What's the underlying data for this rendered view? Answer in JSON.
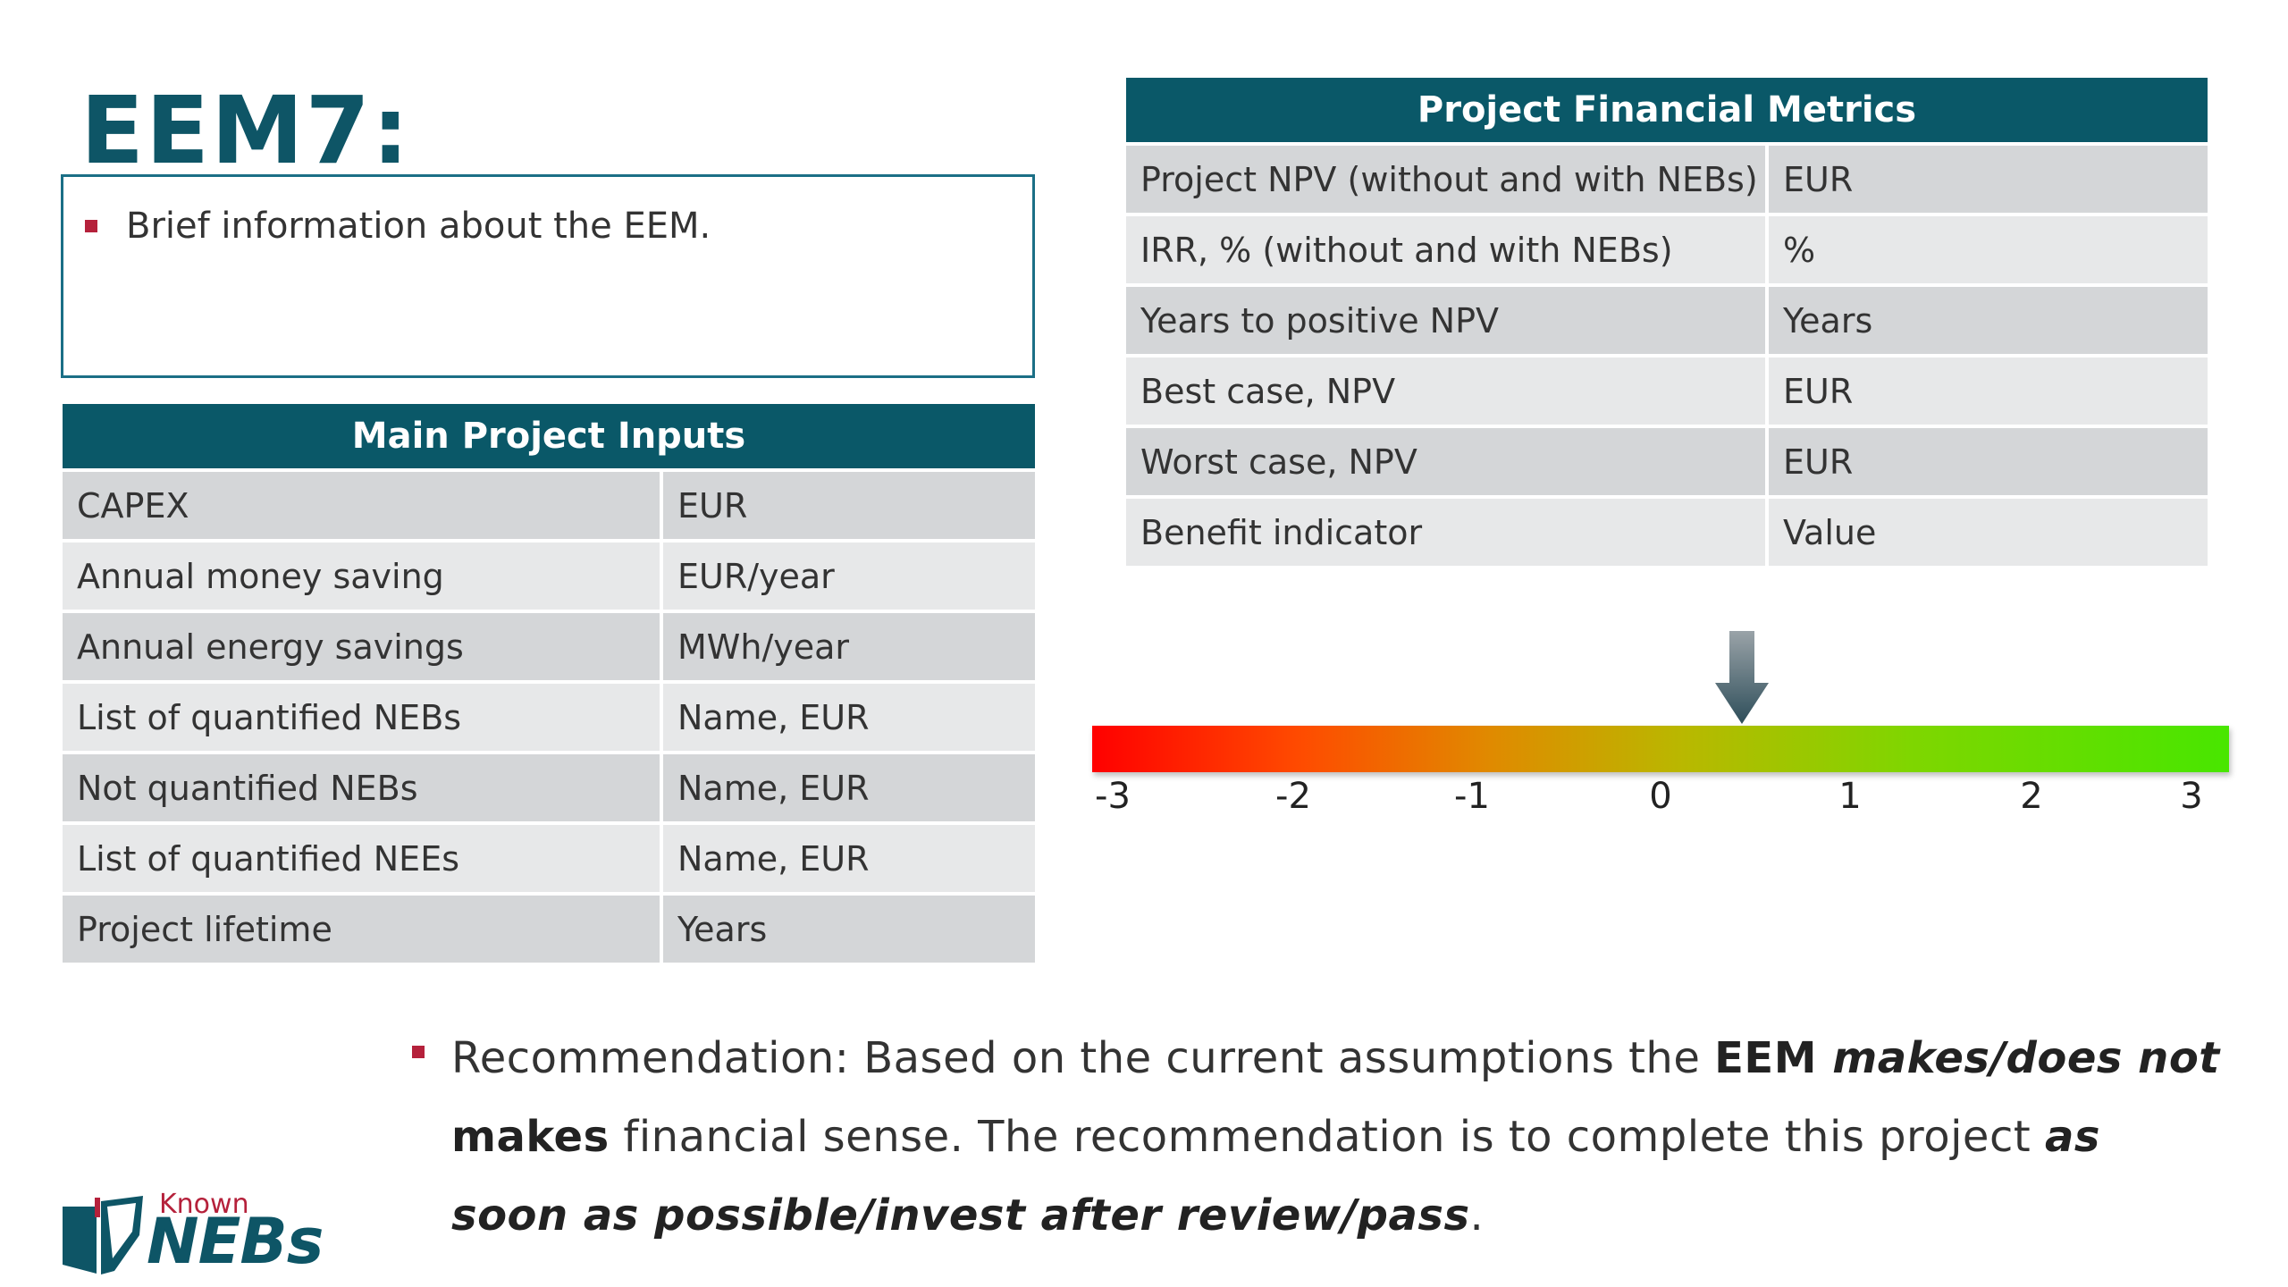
{
  "slide": {
    "title": "EEM7:",
    "info_bullet": "Brief information about the EEM."
  },
  "inputs_table": {
    "header": "Main Project Inputs",
    "rows": [
      {
        "label": "CAPEX",
        "unit": "EUR"
      },
      {
        "label": "Annual money saving",
        "unit": "EUR/year"
      },
      {
        "label": "Annual energy savings",
        "unit": "MWh/year"
      },
      {
        "label": "List of quantified NEBs",
        "unit": "Name, EUR"
      },
      {
        "label": "Not quantified NEBs",
        "unit": "Name, EUR"
      },
      {
        "label": "List of quantified NEEs",
        "unit": "Name, EUR"
      },
      {
        "label": "Project lifetime",
        "unit": "Years"
      }
    ]
  },
  "metrics_table": {
    "header": "Project Financial Metrics",
    "rows": [
      {
        "label": "Project NPV (without and with NEBs)",
        "unit": "EUR"
      },
      {
        "label": "IRR, % (without and with NEBs)",
        "unit": "%"
      },
      {
        "label": "Years to positive NPV",
        "unit": "Years"
      },
      {
        "label": "Best case, NPV",
        "unit": "EUR"
      },
      {
        "label": "Worst case, NPV",
        "unit": "EUR"
      },
      {
        "label": "Benefit indicator",
        "unit": "Value"
      }
    ]
  },
  "scale": {
    "ticks": [
      "-3",
      "-2",
      "-1",
      "0",
      "1",
      "2",
      "3"
    ],
    "min": -3,
    "max": 3,
    "indicator_value": 0.5,
    "gradient_colors": [
      "#ff0000",
      "#e08a00",
      "#b9b800",
      "#48e600"
    ]
  },
  "recommendation": {
    "prefix": "Recommendation: Based on the current assumptions the ",
    "bold1": "EEM ",
    "bolditalic1": "makes/does not",
    "bold2": " makes",
    "middle": " financial sense. The recommendation is to complete this project ",
    "bolditalic2": "as soon as possible/invest after review/pass",
    "suffix": "."
  },
  "logo": {
    "top_text": "Known",
    "main_text": "NEBs"
  },
  "colors": {
    "header_bg": "#0a5868",
    "title": "#0e5566",
    "bullet": "#b5213b"
  }
}
